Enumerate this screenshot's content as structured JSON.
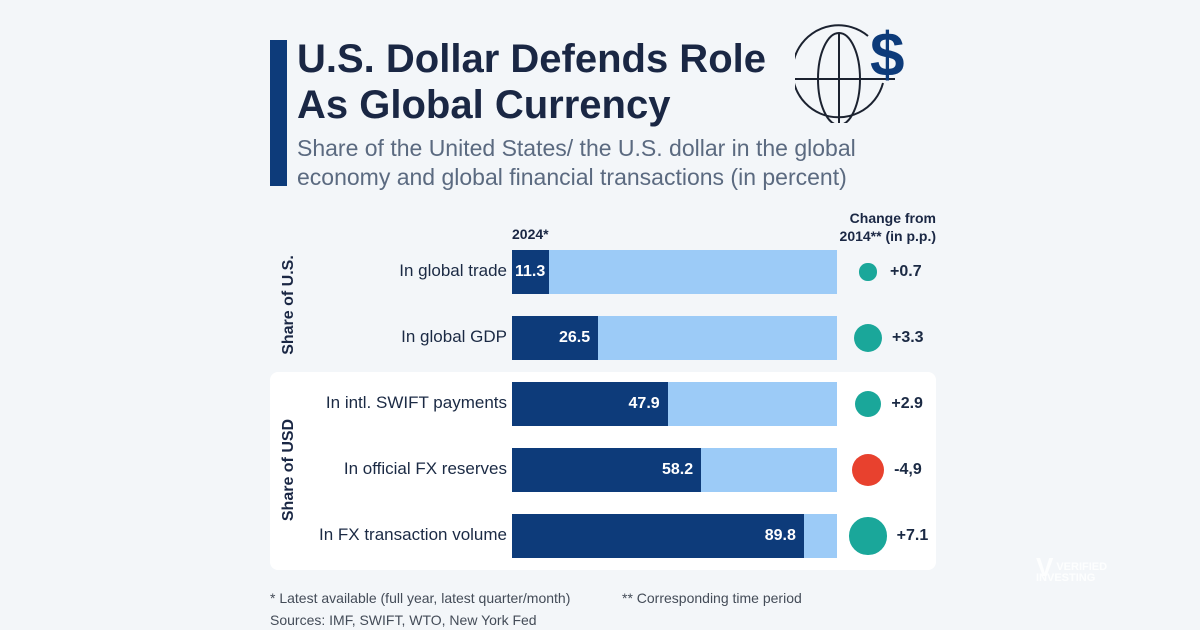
{
  "title": "U.S. Dollar Defends Role As Global Currency",
  "subtitle": "Share of the United States/ the U.S. dollar in the global economy and global financial transactions (in percent)",
  "logo_text": "VERIFIED INVESTING",
  "chart_data": {
    "type": "bar",
    "orientation": "horizontal",
    "column_header": "2024*",
    "change_header_line1": "Change from",
    "change_header_line2": "2014** (in p.p.)",
    "xlim": [
      0,
      100
    ],
    "groups": [
      {
        "label": "Share of U.S.",
        "rows": [
          0,
          1
        ]
      },
      {
        "label": "Share of USD",
        "rows": [
          2,
          3,
          4
        ]
      }
    ],
    "categories": [
      "In global trade",
      "In global GDP",
      "In intl. SWIFT payments",
      "In official FX reserves",
      "In FX transaction volume"
    ],
    "values": [
      11.3,
      26.5,
      47.9,
      58.2,
      89.8
    ],
    "value_labels": [
      "11.3",
      "26.5",
      "47.9",
      "58.2",
      "89.8"
    ],
    "changes": [
      0.7,
      3.3,
      2.9,
      -4.9,
      7.1
    ],
    "change_labels": [
      "+0.7",
      "+3.3",
      "+2.9",
      "-4,9",
      "+7.1"
    ],
    "colors": {
      "bar": "#0d3b7a",
      "track": "#9ccbf7",
      "positive": "#1aa79a",
      "negative": "#e8412e"
    }
  },
  "footnotes": {
    "note1": "* Latest available (full year, latest quarter/month)",
    "note2": "** Corresponding time period",
    "sources": "Sources: IMF, SWIFT, WTO, New York Fed"
  },
  "icon": "globe-dollar-icon"
}
